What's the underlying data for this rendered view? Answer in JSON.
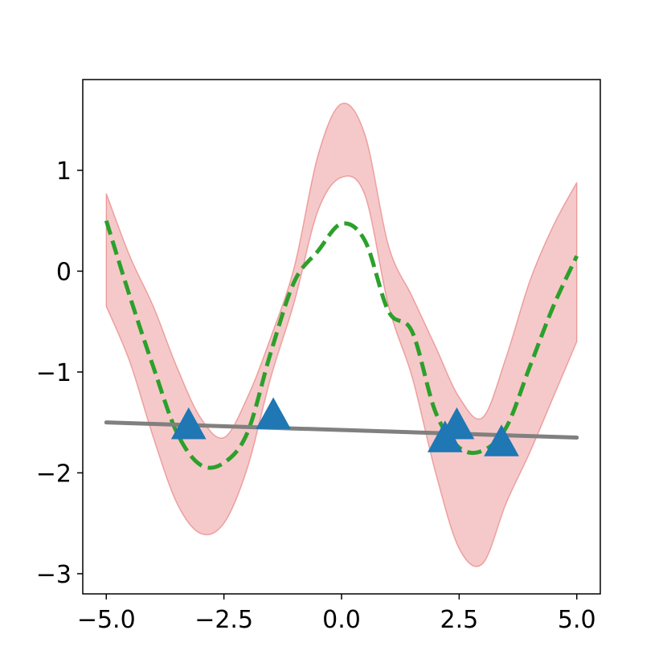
{
  "chart_data": {
    "type": "line",
    "title": "",
    "xlabel": "",
    "ylabel": "",
    "xlim": [
      -5.5,
      5.5
    ],
    "ylim": [
      -3.2,
      1.9
    ],
    "x_ticks": [
      {
        "value": -5.0,
        "label": "−5.0"
      },
      {
        "value": -2.5,
        "label": "−2.5"
      },
      {
        "value": 0.0,
        "label": "0.0"
      },
      {
        "value": 2.5,
        "label": "2.5"
      },
      {
        "value": 5.0,
        "label": "5.0"
      }
    ],
    "y_ticks": [
      {
        "value": 1,
        "label": "1"
      },
      {
        "value": 0,
        "label": "0"
      },
      {
        "value": -1,
        "label": "−1"
      },
      {
        "value": -2,
        "label": "−2"
      },
      {
        "value": -3,
        "label": "−3"
      }
    ],
    "grid": false,
    "legend": "none",
    "band": {
      "x": [
        -5.0,
        -4.5,
        -4.0,
        -3.5,
        -3.0,
        -2.5,
        -2.0,
        -1.5,
        -1.0,
        -0.5,
        0.0,
        0.5,
        1.0,
        1.5,
        2.0,
        2.5,
        3.0,
        3.5,
        4.0,
        4.5,
        5.0
      ],
      "upper": [
        0.77,
        0.15,
        -0.35,
        -0.95,
        -1.45,
        -1.65,
        -1.25,
        -0.65,
        0.05,
        1.15,
        1.66,
        1.35,
        0.25,
        -0.25,
        -0.75,
        -1.25,
        -1.45,
        -0.85,
        -0.1,
        0.45,
        0.88
      ],
      "lower": [
        -0.35,
        -0.9,
        -1.65,
        -2.3,
        -2.6,
        -2.5,
        -1.95,
        -1.05,
        -0.3,
        0.6,
        0.93,
        0.75,
        -0.35,
        -1.05,
        -2.0,
        -2.75,
        -2.9,
        -2.3,
        -1.8,
        -1.25,
        -0.7
      ],
      "color": "#d62728",
      "opacity": 0.25
    },
    "series": [
      {
        "style": "dashed",
        "color": "#2ca02c",
        "x": [
          -5.0,
          -4.5,
          -4.0,
          -3.5,
          -3.0,
          -2.5,
          -2.0,
          -1.5,
          -1.0,
          -0.5,
          0.0,
          0.5,
          1.0,
          1.5,
          2.0,
          2.5,
          3.0,
          3.5,
          4.0,
          4.5,
          5.0
        ],
        "y": [
          0.5,
          -0.25,
          -0.95,
          -1.6,
          -1.92,
          -1.9,
          -1.6,
          -0.8,
          -0.1,
          0.2,
          0.47,
          0.3,
          -0.4,
          -0.6,
          -1.4,
          -1.75,
          -1.78,
          -1.55,
          -0.95,
          -0.35,
          0.15
        ]
      },
      {
        "style": "solid",
        "color": "#808080",
        "x": [
          -5.0,
          5.0
        ],
        "y": [
          -1.5,
          -1.65
        ]
      }
    ],
    "points": {
      "marker": "triangle",
      "color": "#1f77b4",
      "x": [
        -3.25,
        -1.45,
        2.2,
        2.45,
        3.4
      ],
      "y": [
        -1.55,
        -1.45,
        -1.68,
        -1.55,
        -1.72
      ]
    }
  }
}
